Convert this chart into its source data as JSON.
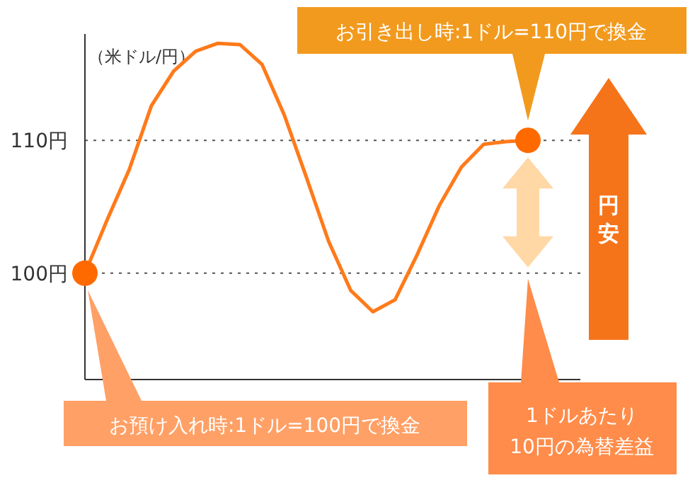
{
  "chart_data": {
    "type": "line",
    "ylabel": "（米ドル/円）",
    "categories": [
      null,
      null,
      null,
      null,
      null,
      null,
      null,
      null,
      null,
      null,
      null,
      null,
      null,
      null,
      null,
      null,
      null,
      null,
      null,
      null,
      null
    ],
    "series": [
      {
        "type": "line",
        "color": "#ff7a1a",
        "marker": "none",
        "values": [
          100,
          104.0,
          107.8,
          112.6,
          115.2,
          116.7,
          117.3,
          117.2,
          115.7,
          111.9,
          107.2,
          102.4,
          98.7,
          97.1,
          98.0,
          101.4,
          105.1,
          108.0,
          109.7,
          109.9,
          110
        ]
      },
      {
        "type": "scatter",
        "color": "#ff6a00",
        "marker": "circle",
        "values": [
          100,
          null,
          null,
          null,
          null,
          null,
          null,
          null,
          null,
          null,
          null,
          null,
          null,
          null,
          null,
          null,
          null,
          null,
          null,
          null,
          110
        ]
      }
    ],
    "ylim": [
      92,
      118
    ],
    "yticks": [
      {
        "value": 100,
        "label": "100円"
      },
      {
        "value": 110,
        "label": "110円"
      }
    ],
    "ref_lines": [
      {
        "axis": "y",
        "value": 100,
        "color": "#555555",
        "line_style": "dotted"
      },
      {
        "axis": "y",
        "value": 110,
        "color": "#555555",
        "line_style": "dotted"
      }
    ],
    "grid": false,
    "annotations": [
      "お引き出し時:1ドル=110円で換金",
      "お預け入れ時:1ドル=100円で換金",
      "1ドルあたり\n10円の為替差益",
      "円安"
    ]
  }
}
